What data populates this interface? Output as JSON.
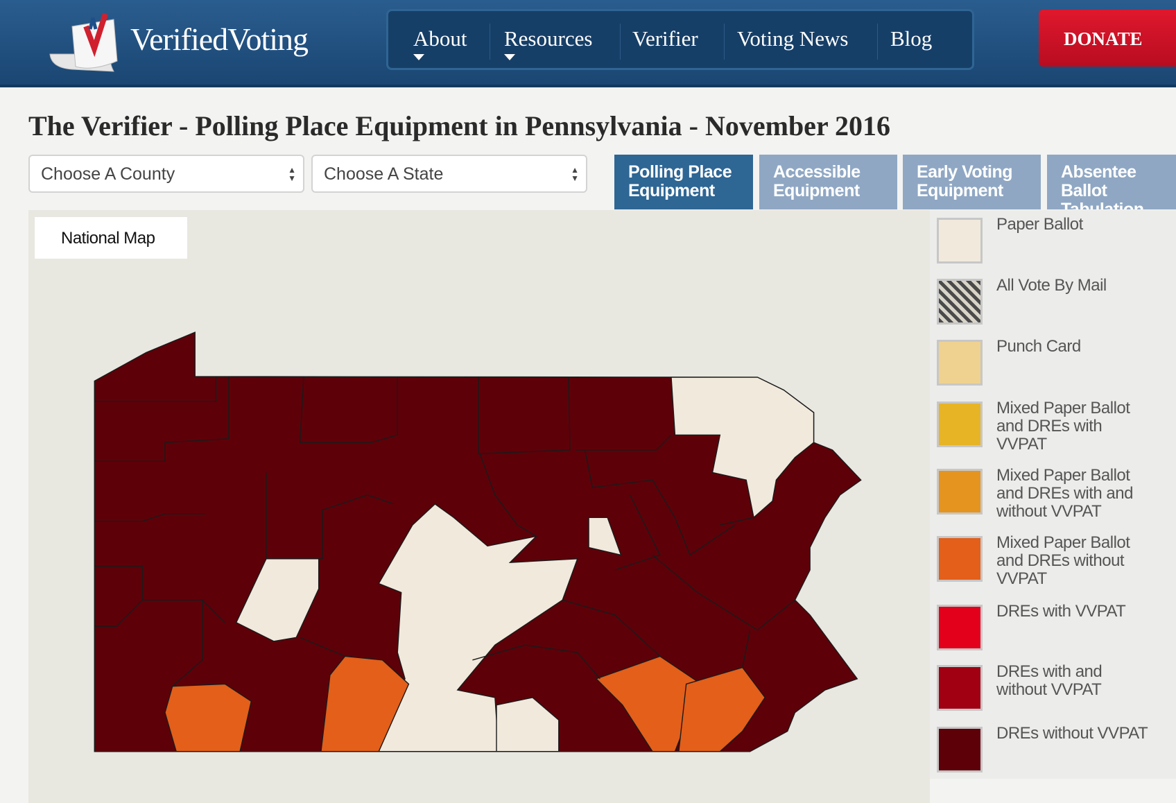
{
  "header": {
    "logo": "VerifiedVoting",
    "nav": [
      "About",
      "Resources",
      "Verifier",
      "Voting News",
      "Blog"
    ],
    "donate": "DONATE"
  },
  "title": "The Verifier - Polling Place Equipment in Pennsylvania - November 2016",
  "selects": [
    "Choose A County",
    "Choose A State"
  ],
  "tabs": [
    "Polling Place Equipment",
    "Accessible Equipment",
    "Early Voting Equipment",
    "Absentee Ballot Tabulation"
  ],
  "map_button": "National Map",
  "legend": [
    {
      "label": "Paper Ballot",
      "color": "#f1e9dc"
    },
    {
      "label": "All Vote By Mail",
      "color": "#4a4a4a",
      "pattern": "diagonal-stripes"
    },
    {
      "label": "Punch Card",
      "color": "#efd28f"
    },
    {
      "label": "Mixed Paper Ballot and DREs with VVPAT",
      "color": "#e6b425"
    },
    {
      "label": "Mixed Paper Ballot and DREs with and without VVPAT",
      "color": "#e5941f"
    },
    {
      "label": "Mixed Paper Ballot and DREs without VVPAT",
      "color": "#e35f1a"
    },
    {
      "label": "DREs with VVPAT",
      "color": "#e3001b"
    },
    {
      "label": "DREs with and without VVPAT",
      "color": "#a00012"
    },
    {
      "label": "DREs without VVPAT",
      "color": "#5e0008"
    }
  ]
}
